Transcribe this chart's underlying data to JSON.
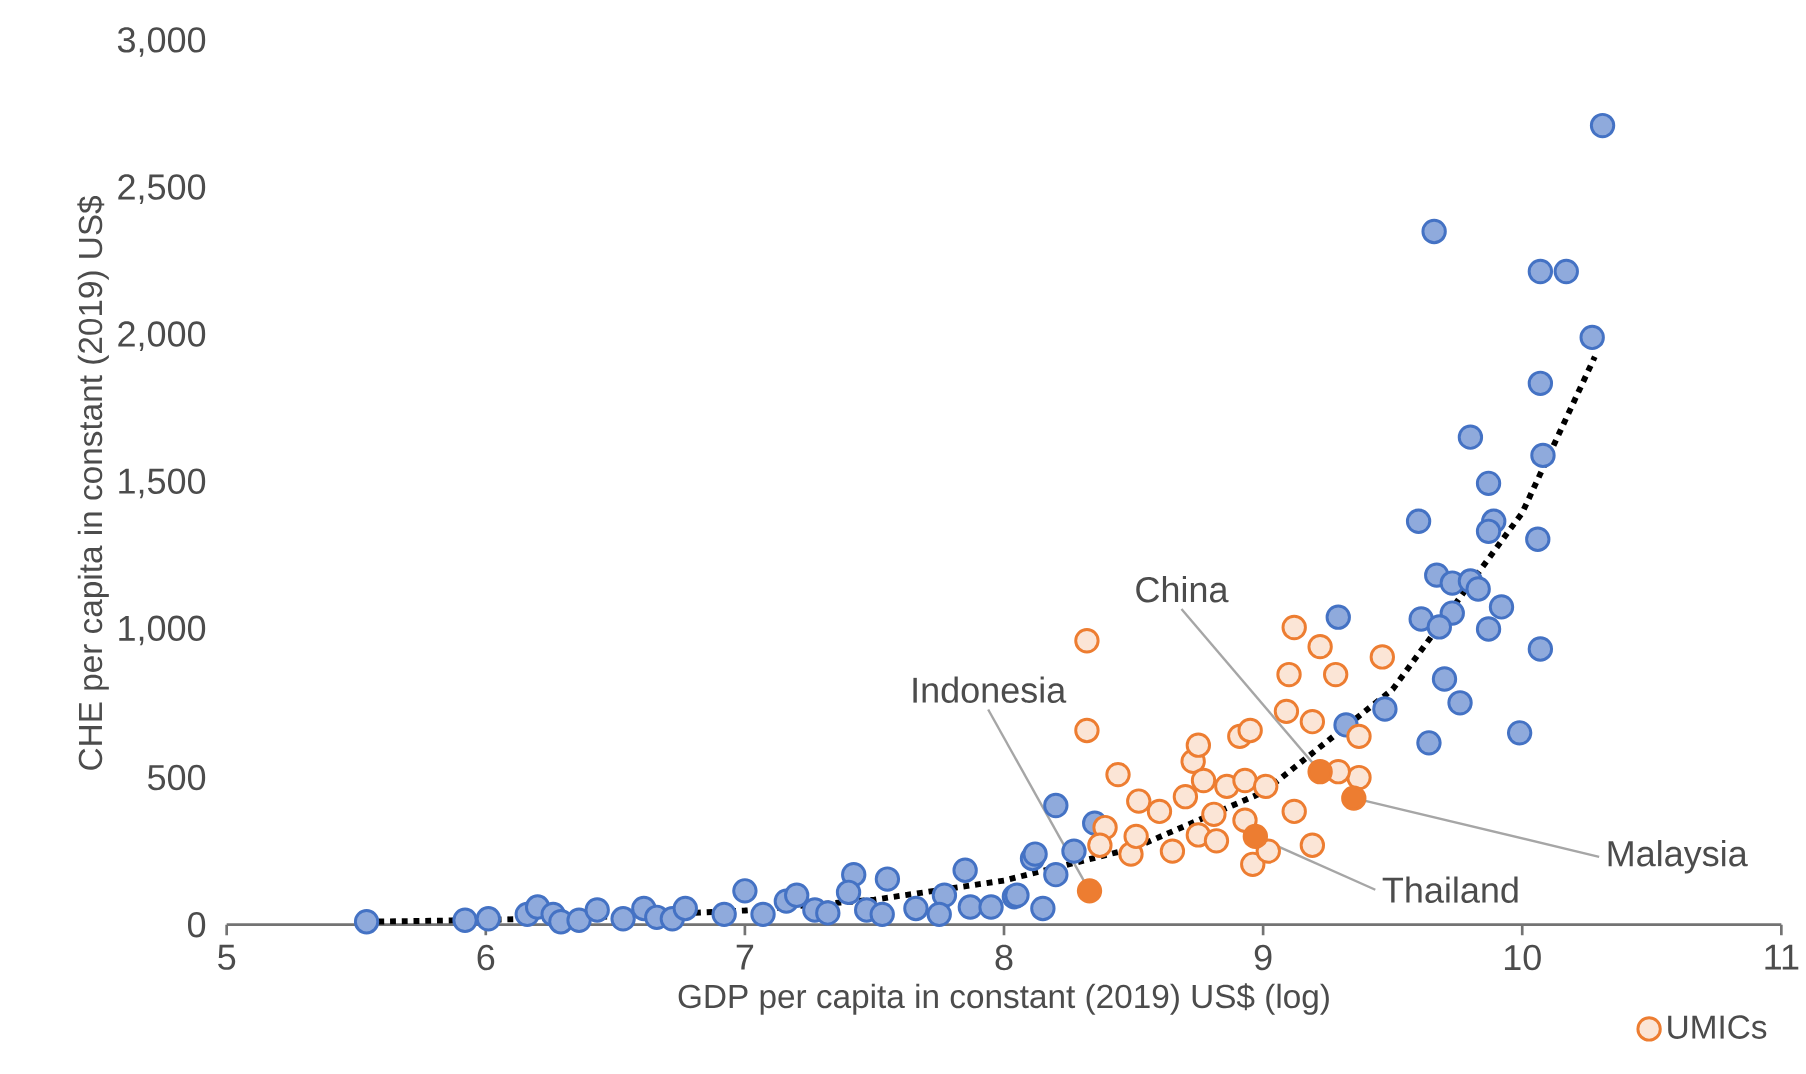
{
  "chart_data": {
    "type": "scatter",
    "xlabel": "GDP per capita in constant (2019) US$ (log)",
    "ylabel": "CHE per capita in constant (2019) US$",
    "xlim": [
      5,
      11
    ],
    "xticks": [
      5,
      6,
      7,
      8,
      9,
      10,
      11
    ],
    "ylim": [
      0,
      3000
    ],
    "yticks": [
      {
        "value": 0,
        "label": "0"
      },
      {
        "value": 500,
        "label": "500"
      },
      {
        "value": 1000,
        "label": "1,000"
      },
      {
        "value": 1500,
        "label": "1,500"
      },
      {
        "value": 2000,
        "label": "2,000"
      },
      {
        "value": 2500,
        "label": "2,500"
      },
      {
        "value": 3000,
        "label": "3,000"
      }
    ],
    "grid": false,
    "legend": "bottom right",
    "line_style": "dotted",
    "series": [
      {
        "marker": "circle",
        "color": "#4472c4",
        "x": [
          5.54,
          5.92,
          6.01,
          6.16,
          6.2,
          6.26,
          6.29,
          6.36,
          6.43,
          6.53,
          6.61,
          6.66,
          6.72,
          6.77,
          6.92,
          7.0,
          7.07,
          7.16,
          7.2,
          7.27,
          7.32,
          7.42,
          7.4,
          7.47,
          7.55,
          7.53,
          7.66,
          7.77,
          7.75,
          7.85,
          7.87,
          7.95,
          8.04,
          8.11,
          8.15,
          8.2,
          8.2,
          8.27,
          8.35,
          8.12,
          8.05,
          10.31,
          9.66,
          10.07,
          10.17,
          10.27,
          10.07,
          9.8,
          10.08,
          9.87,
          9.6,
          9.89,
          9.87,
          10.06,
          9.67,
          9.73,
          9.8,
          9.83,
          9.73,
          9.92,
          9.61,
          9.68,
          9.87,
          9.29,
          10.07,
          9.7,
          9.76,
          9.47,
          9.32,
          9.99,
          9.64
        ],
        "values": [
          10,
          15,
          20,
          35,
          60,
          35,
          10,
          15,
          50,
          20,
          55,
          25,
          20,
          55,
          35,
          115,
          35,
          80,
          100,
          50,
          40,
          170,
          110,
          50,
          155,
          35,
          55,
          100,
          35,
          185,
          60,
          60,
          95,
          225,
          55,
          405,
          170,
          250,
          345,
          240,
          100,
          2716,
          2356,
          2220,
          2220,
          1996,
          1840,
          1657,
          1595,
          1500,
          1371,
          1371,
          1337,
          1310,
          1188,
          1161,
          1168,
          1141,
          1059,
          1080,
          1039,
          1012,
          1005,
          1045,
          937,
          835,
          754,
          733,
          679,
          652,
          618
        ]
      },
      {
        "name": "UMICs",
        "marker": "circle",
        "color": "#ed7d31",
        "x": [
          8.32,
          8.32,
          8.44,
          8.39,
          8.37,
          8.49,
          8.51,
          8.52,
          8.6,
          8.65,
          8.7,
          8.73,
          8.75,
          8.77,
          8.75,
          8.81,
          8.86,
          8.91,
          8.95,
          8.93,
          9.01,
          8.93,
          8.96,
          9.02,
          9.12,
          9.19,
          9.09,
          9.19,
          9.1,
          9.12,
          9.22,
          9.28,
          9.37,
          9.37,
          9.29,
          9.46,
          8.82
        ],
        "values": [
          965,
          660,
          510,
          330,
          270,
          240,
          300,
          420,
          385,
          250,
          435,
          555,
          610,
          490,
          305,
          375,
          470,
          640,
          660,
          490,
          470,
          355,
          205,
          250,
          385,
          270,
          725,
          690,
          850,
          1010,
          945,
          850,
          640,
          500,
          520,
          910,
          285
        ]
      },
      {
        "marker": "circle",
        "color": "#ed7d31",
        "x": [
          8.33,
          9.22,
          8.97,
          9.35
        ],
        "values": [
          115,
          520,
          300,
          430
        ]
      },
      {
        "type": "line",
        "marker": "none",
        "color": "#000000",
        "x": [
          5.54,
          6.0,
          6.5,
          7.0,
          7.5,
          8.0,
          8.5,
          9.0,
          9.5,
          10.0,
          10.28
        ],
        "values": [
          10,
          16,
          28,
          48,
          85,
          150,
          260,
          450,
          800,
          1400,
          1930
        ]
      }
    ],
    "annotations": [
      {
        "text": "Indonesia",
        "x": 8.33,
        "y": 115
      },
      {
        "text": "China",
        "x": 9.22,
        "y": 520
      },
      {
        "text": "Thailand",
        "x": 8.97,
        "y": 300
      },
      {
        "text": "Malaysia",
        "x": 9.35,
        "y": 430
      }
    ]
  }
}
